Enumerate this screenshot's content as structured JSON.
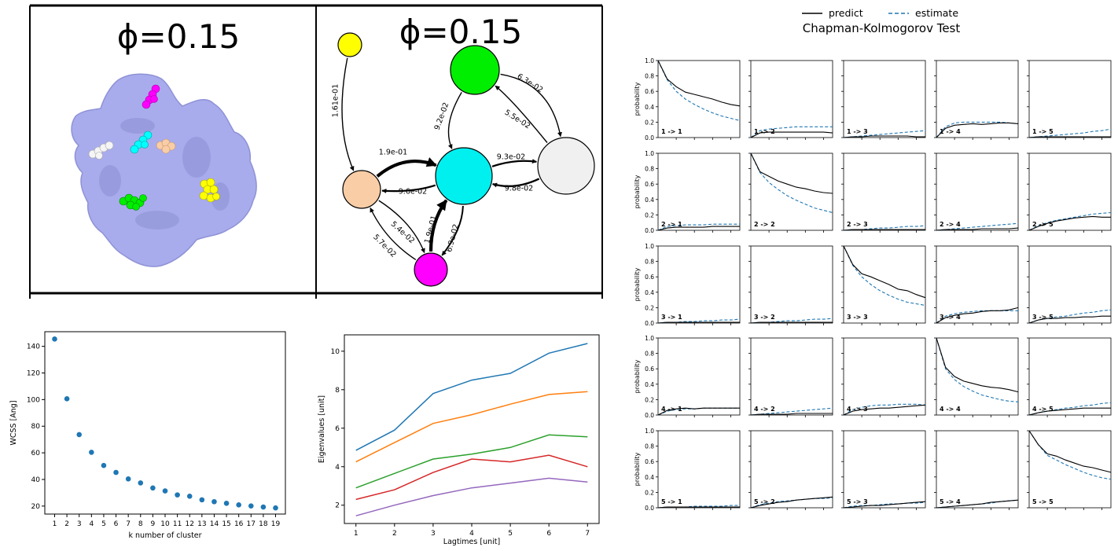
{
  "panels": {
    "structure_title": "ϕ=0.15",
    "network_title": "ϕ=0.15"
  },
  "colors": {
    "pocket_magenta": "#ff00ff",
    "pocket_cyan": "#00ffff",
    "pocket_peach": "#f9cda6",
    "pocket_white": "#eeeeee",
    "pocket_green": "#00ee00",
    "pocket_yellow": "#ffff00",
    "protein_surface": "#a8acec",
    "mpl_blue": "#1f77b4",
    "mpl_orange": "#ff7f0e",
    "mpl_green": "#2ca02c",
    "mpl_red": "#d62728",
    "mpl_purple": "#9467bd"
  },
  "network": {
    "nodes": [
      {
        "id": "yellow",
        "color": "#ffff00"
      },
      {
        "id": "green",
        "color": "#00ee00"
      },
      {
        "id": "cyan",
        "color": "#00f0f0"
      },
      {
        "id": "white",
        "color": "#f0f0f0"
      },
      {
        "id": "peach",
        "color": "#f9cda6"
      },
      {
        "id": "magenta",
        "color": "#ff00ff"
      }
    ],
    "edges": [
      {
        "from": "yellow",
        "to": "peach",
        "label": "1.61e-01"
      },
      {
        "from": "green",
        "to": "white",
        "label": "6.3e-02"
      },
      {
        "from": "white",
        "to": "green",
        "label": "5.5e-02"
      },
      {
        "from": "green",
        "to": "cyan",
        "label": "9.2e-02"
      },
      {
        "from": "peach",
        "to": "cyan",
        "label": "1.9e-01"
      },
      {
        "from": "cyan",
        "to": "peach",
        "label": "9.6e-02"
      },
      {
        "from": "cyan",
        "to": "white",
        "label": "9.3e-02"
      },
      {
        "from": "white",
        "to": "cyan",
        "label": "9.8e-02"
      },
      {
        "from": "peach",
        "to": "magenta",
        "label": "5.4e-02"
      },
      {
        "from": "magenta",
        "to": "peach",
        "label": "5.7e-02"
      },
      {
        "from": "magenta",
        "to": "cyan",
        "label": "1.9e-01"
      },
      {
        "from": "cyan",
        "to": "magenta",
        "label": "6.9e-02"
      }
    ]
  },
  "chart_data": [
    {
      "type": "scatter",
      "xlabel": "k number of cluster",
      "ylabel": "WCSS [Ang]",
      "x": [
        1,
        2,
        3,
        4,
        5,
        6,
        7,
        8,
        9,
        10,
        11,
        12,
        13,
        14,
        15,
        16,
        17,
        18,
        19
      ],
      "y": [
        145.5,
        100.6,
        73.7,
        60.4,
        50.5,
        45.3,
        40.4,
        37.4,
        33.6,
        31.4,
        28.4,
        27.4,
        24.7,
        23.3,
        22.1,
        20.9,
        20.1,
        19.3,
        18.6
      ],
      "xticks": [
        1,
        2,
        3,
        4,
        5,
        6,
        7,
        8,
        9,
        10,
        11,
        12,
        13,
        14,
        15,
        16,
        17,
        18,
        19
      ],
      "yticks": [
        20,
        40,
        60,
        80,
        100,
        120,
        140
      ],
      "xlim": [
        0.2,
        19.8
      ],
      "ylim": [
        14,
        151
      ],
      "color": "#1f77b4"
    },
    {
      "type": "line",
      "xlabel": "Lagtimes [unit]",
      "ylabel": "Eigenvalues [unit]",
      "x": [
        1,
        2,
        3,
        4,
        5,
        6,
        7
      ],
      "xticks": [
        1,
        2,
        3,
        4,
        5,
        6,
        7
      ],
      "yticks": [
        2,
        4,
        6,
        8,
        10
      ],
      "xlim": [
        0.7,
        7.3
      ],
      "ylim": [
        1.05,
        10.85
      ],
      "series": [
        {
          "color": "#1f77b4",
          "values": [
            4.85,
            5.9,
            7.8,
            8.5,
            8.85,
            9.9,
            10.4
          ]
        },
        {
          "color": "#ff7f0e",
          "values": [
            4.25,
            5.25,
            6.25,
            6.7,
            7.25,
            7.75,
            7.9
          ]
        },
        {
          "color": "#2ca02c",
          "values": [
            2.9,
            3.65,
            4.4,
            4.65,
            5.0,
            5.65,
            5.55
          ]
        },
        {
          "color": "#d62728",
          "values": [
            2.3,
            2.8,
            3.7,
            4.4,
            4.25,
            4.6,
            4.0
          ]
        },
        {
          "color": "#9467bd",
          "values": [
            1.45,
            2.0,
            2.5,
            2.9,
            3.15,
            3.4,
            3.2
          ]
        }
      ]
    },
    {
      "type": "line",
      "title": "Chapman-Kolmogorov Test",
      "legend": [
        {
          "name": "predict",
          "color": "#000000",
          "style": "solid"
        },
        {
          "name": "estimate",
          "color": "#1f77b4",
          "style": "dashed"
        }
      ],
      "legend_position": "top-center",
      "ylabel": "probability",
      "yticks": [
        0.0,
        0.2,
        0.4,
        0.6,
        0.8,
        1.0
      ],
      "ytick_labels": [
        "0.0",
        "0.2",
        "0.4",
        "0.6",
        "0.8",
        "1.0"
      ],
      "ylim": [
        0,
        1
      ],
      "x": [
        0,
        1,
        2,
        3,
        4,
        5,
        6,
        7,
        8,
        9
      ],
      "xlim": [
        0,
        9
      ],
      "xtick_positions": [
        2,
        4,
        6,
        8
      ],
      "panels": [
        {
          "label": "1 -> 1",
          "predict": [
            1,
            0.76,
            0.66,
            0.59,
            0.56,
            0.53,
            0.5,
            0.46,
            0.43,
            0.41
          ],
          "estimate": [
            1,
            0.75,
            0.6,
            0.5,
            0.43,
            0.37,
            0.32,
            0.28,
            0.25,
            0.22
          ]
        },
        {
          "label": "1 -> 2",
          "predict": [
            0,
            0.06,
            0.07,
            0.07,
            0.07,
            0.07,
            0.07,
            0.07,
            0.07,
            0.06
          ],
          "estimate": [
            0,
            0.09,
            0.11,
            0.12,
            0.13,
            0.14,
            0.14,
            0.14,
            0.14,
            0.14
          ]
        },
        {
          "label": "1 -> 3",
          "predict": [
            0,
            0.01,
            0.01,
            0.02,
            0.02,
            0.02,
            0.02,
            0.02,
            0.01,
            0.01
          ],
          "estimate": [
            0,
            0.01,
            0.02,
            0.03,
            0.04,
            0.05,
            0.06,
            0.07,
            0.08,
            0.09
          ]
        },
        {
          "label": "1 -> 4",
          "predict": [
            0,
            0.12,
            0.16,
            0.17,
            0.18,
            0.17,
            0.18,
            0.19,
            0.19,
            0.18
          ],
          "estimate": [
            0,
            0.14,
            0.19,
            0.2,
            0.2,
            0.2,
            0.2,
            0.2,
            0.19,
            0.18
          ]
        },
        {
          "label": "1 -> 5",
          "predict": [
            0,
            0.01,
            0.01,
            0.01,
            0.01,
            0.01,
            0.01,
            0.01,
            0.01,
            0.01
          ],
          "estimate": [
            0,
            0.01,
            0.02,
            0.03,
            0.04,
            0.05,
            0.06,
            0.08,
            0.09,
            0.11
          ]
        },
        {
          "label": "2 -> 1",
          "predict": [
            0,
            0.03,
            0.04,
            0.04,
            0.04,
            0.04,
            0.05,
            0.05,
            0.05,
            0.05
          ],
          "estimate": [
            0,
            0.05,
            0.06,
            0.07,
            0.07,
            0.07,
            0.08,
            0.08,
            0.08,
            0.08
          ]
        },
        {
          "label": "2 -> 2",
          "predict": [
            1,
            0.76,
            0.7,
            0.64,
            0.6,
            0.56,
            0.54,
            0.51,
            0.49,
            0.48
          ],
          "estimate": [
            1,
            0.75,
            0.62,
            0.53,
            0.45,
            0.39,
            0.34,
            0.29,
            0.26,
            0.23
          ]
        },
        {
          "label": "2 -> 3",
          "predict": [
            0,
            0.01,
            0.01,
            0.01,
            0.01,
            0.01,
            0.01,
            0.01,
            0.01,
            0.01
          ],
          "estimate": [
            0,
            0.01,
            0.01,
            0.02,
            0.03,
            0.03,
            0.04,
            0.05,
            0.05,
            0.06
          ]
        },
        {
          "label": "2 -> 4",
          "predict": [
            0,
            0.01,
            0.01,
            0.01,
            0.01,
            0.02,
            0.02,
            0.02,
            0.02,
            0.03
          ],
          "estimate": [
            0,
            0.01,
            0.02,
            0.03,
            0.04,
            0.05,
            0.06,
            0.07,
            0.08,
            0.09
          ]
        },
        {
          "label": "2 -> 5",
          "predict": [
            0,
            0.05,
            0.09,
            0.12,
            0.14,
            0.16,
            0.17,
            0.18,
            0.17,
            0.17
          ],
          "estimate": [
            0,
            0.06,
            0.1,
            0.13,
            0.15,
            0.17,
            0.19,
            0.21,
            0.22,
            0.23
          ]
        },
        {
          "label": "3 -> 1",
          "predict": [
            0,
            0.01,
            0.01,
            0.01,
            0.01,
            0.01,
            0.01,
            0.01,
            0.01,
            0.01
          ],
          "estimate": [
            0,
            0.01,
            0.01,
            0.02,
            0.02,
            0.03,
            0.03,
            0.04,
            0.04,
            0.05
          ]
        },
        {
          "label": "3 -> 2",
          "predict": [
            0,
            0.01,
            0.01,
            0.01,
            0.01,
            0.01,
            0.01,
            0.01,
            0.01,
            0.01
          ],
          "estimate": [
            0,
            0.01,
            0.01,
            0.02,
            0.03,
            0.03,
            0.04,
            0.05,
            0.05,
            0.06
          ]
        },
        {
          "label": "3 -> 3",
          "predict": [
            1,
            0.76,
            0.64,
            0.6,
            0.55,
            0.5,
            0.44,
            0.42,
            0.37,
            0.33
          ],
          "estimate": [
            1,
            0.75,
            0.6,
            0.5,
            0.42,
            0.36,
            0.31,
            0.27,
            0.25,
            0.23
          ]
        },
        {
          "label": "3 -> 4",
          "predict": [
            0,
            0.07,
            0.1,
            0.12,
            0.13,
            0.15,
            0.16,
            0.16,
            0.17,
            0.2
          ],
          "estimate": [
            0,
            0.09,
            0.12,
            0.14,
            0.15,
            0.16,
            0.16,
            0.16,
            0.16,
            0.16
          ]
        },
        {
          "label": "3 -> 5",
          "predict": [
            0,
            0.04,
            0.06,
            0.06,
            0.07,
            0.07,
            0.08,
            0.08,
            0.09,
            0.09
          ],
          "estimate": [
            0,
            0.04,
            0.06,
            0.08,
            0.09,
            0.11,
            0.13,
            0.14,
            0.16,
            0.17
          ]
        },
        {
          "label": "4 -> 1",
          "predict": [
            0,
            0.06,
            0.08,
            0.09,
            0.08,
            0.09,
            0.09,
            0.09,
            0.09,
            0.09
          ],
          "estimate": [
            0,
            0.05,
            0.07,
            0.08,
            0.08,
            0.09,
            0.09,
            0.09,
            0.09,
            0.09
          ]
        },
        {
          "label": "4 -> 2",
          "predict": [
            0,
            0.01,
            0.01,
            0.01,
            0.01,
            0.02,
            0.02,
            0.02,
            0.02,
            0.02
          ],
          "estimate": [
            0,
            0.01,
            0.02,
            0.03,
            0.04,
            0.05,
            0.06,
            0.07,
            0.08,
            0.09
          ]
        },
        {
          "label": "4 -> 3",
          "predict": [
            0,
            0.05,
            0.07,
            0.08,
            0.09,
            0.09,
            0.1,
            0.11,
            0.12,
            0.13
          ],
          "estimate": [
            0,
            0.07,
            0.1,
            0.12,
            0.13,
            0.13,
            0.14,
            0.14,
            0.14,
            0.13
          ]
        },
        {
          "label": "4 -> 4",
          "predict": [
            1,
            0.62,
            0.5,
            0.44,
            0.41,
            0.38,
            0.36,
            0.35,
            0.33,
            0.3
          ],
          "estimate": [
            1,
            0.6,
            0.46,
            0.37,
            0.31,
            0.26,
            0.23,
            0.2,
            0.18,
            0.17
          ]
        },
        {
          "label": "4 -> 5",
          "predict": [
            0,
            0.03,
            0.05,
            0.06,
            0.07,
            0.08,
            0.09,
            0.09,
            0.09,
            0.09
          ],
          "estimate": [
            0,
            0.03,
            0.05,
            0.07,
            0.09,
            0.1,
            0.12,
            0.13,
            0.15,
            0.16
          ]
        },
        {
          "label": "5 -> 1",
          "predict": [
            0,
            0.01,
            0.01,
            0.01,
            0.01,
            0.01,
            0.01,
            0.01,
            0.01,
            0.01
          ],
          "estimate": [
            0,
            0.01,
            0.01,
            0.01,
            0.02,
            0.02,
            0.02,
            0.02,
            0.03,
            0.03
          ]
        },
        {
          "label": "5 -> 2",
          "predict": [
            0,
            0.03,
            0.05,
            0.07,
            0.08,
            0.1,
            0.11,
            0.12,
            0.13,
            0.14
          ],
          "estimate": [
            0,
            0.04,
            0.06,
            0.08,
            0.09,
            0.1,
            0.11,
            0.12,
            0.12,
            0.13
          ]
        },
        {
          "label": "5 -> 3",
          "predict": [
            0,
            0.01,
            0.02,
            0.03,
            0.03,
            0.04,
            0.05,
            0.06,
            0.07,
            0.08
          ],
          "estimate": [
            0,
            0.02,
            0.03,
            0.03,
            0.04,
            0.05,
            0.05,
            0.06,
            0.06,
            0.07
          ]
        },
        {
          "label": "5 -> 4",
          "predict": [
            0,
            0.01,
            0.02,
            0.03,
            0.04,
            0.05,
            0.07,
            0.08,
            0.09,
            0.1
          ],
          "estimate": [
            0,
            0.01,
            0.02,
            0.03,
            0.04,
            0.05,
            0.06,
            0.08,
            0.09,
            0.1
          ]
        },
        {
          "label": "5 -> 5",
          "predict": [
            1,
            0.82,
            0.7,
            0.67,
            0.62,
            0.58,
            0.54,
            0.52,
            0.49,
            0.46
          ],
          "estimate": [
            1,
            0.82,
            0.68,
            0.62,
            0.56,
            0.51,
            0.46,
            0.42,
            0.39,
            0.37
          ]
        }
      ]
    }
  ]
}
